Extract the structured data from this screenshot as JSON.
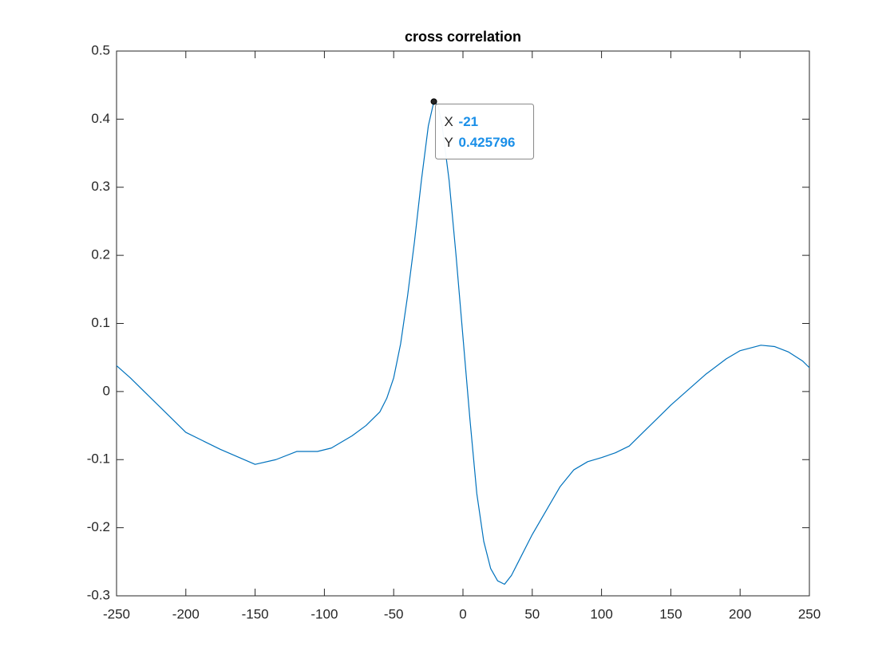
{
  "chart_data": {
    "type": "line",
    "title": "cross correlation",
    "x": [
      -250,
      -240,
      -225,
      -200,
      -175,
      -150,
      -135,
      -120,
      -105,
      -95,
      -80,
      -70,
      -60,
      -55,
      -50,
      -45,
      -40,
      -35,
      -30,
      -25,
      -21,
      -18,
      -15,
      -10,
      -5,
      0,
      5,
      10,
      15,
      20,
      25,
      30,
      35,
      40,
      50,
      60,
      70,
      80,
      90,
      100,
      110,
      120,
      130,
      140,
      150,
      160,
      175,
      190,
      200,
      215,
      225,
      235,
      245,
      250
    ],
    "series": [
      {
        "color": "#0072bd",
        "values": [
          0.038,
          0.02,
          -0.01,
          -0.06,
          -0.085,
          -0.107,
          -0.1,
          -0.088,
          -0.088,
          -0.083,
          -0.065,
          -0.05,
          -0.03,
          -0.01,
          0.02,
          0.07,
          0.14,
          0.22,
          0.31,
          0.39,
          0.425796,
          0.42,
          0.39,
          0.31,
          0.2,
          0.08,
          -0.04,
          -0.15,
          -0.22,
          -0.26,
          -0.278,
          -0.283,
          -0.27,
          -0.25,
          -0.21,
          -0.175,
          -0.14,
          -0.115,
          -0.103,
          -0.097,
          -0.09,
          -0.08,
          -0.06,
          -0.04,
          -0.02,
          -0.002,
          0.025,
          0.048,
          0.06,
          0.068,
          0.066,
          0.058,
          0.045,
          0.035
        ]
      }
    ],
    "xlim": [
      -250,
      250
    ],
    "ylim": [
      -0.3,
      0.5
    ],
    "xticks": [
      -250,
      -200,
      -150,
      -100,
      -50,
      0,
      50,
      100,
      150,
      200,
      250
    ],
    "yticks": [
      -0.3,
      -0.2,
      -0.1,
      0,
      0.1,
      0.2,
      0.3,
      0.4,
      0.5
    ],
    "box": true,
    "datatip": {
      "x_label": "X",
      "x": -21,
      "y_label": "Y",
      "y": 0.425796
    }
  }
}
